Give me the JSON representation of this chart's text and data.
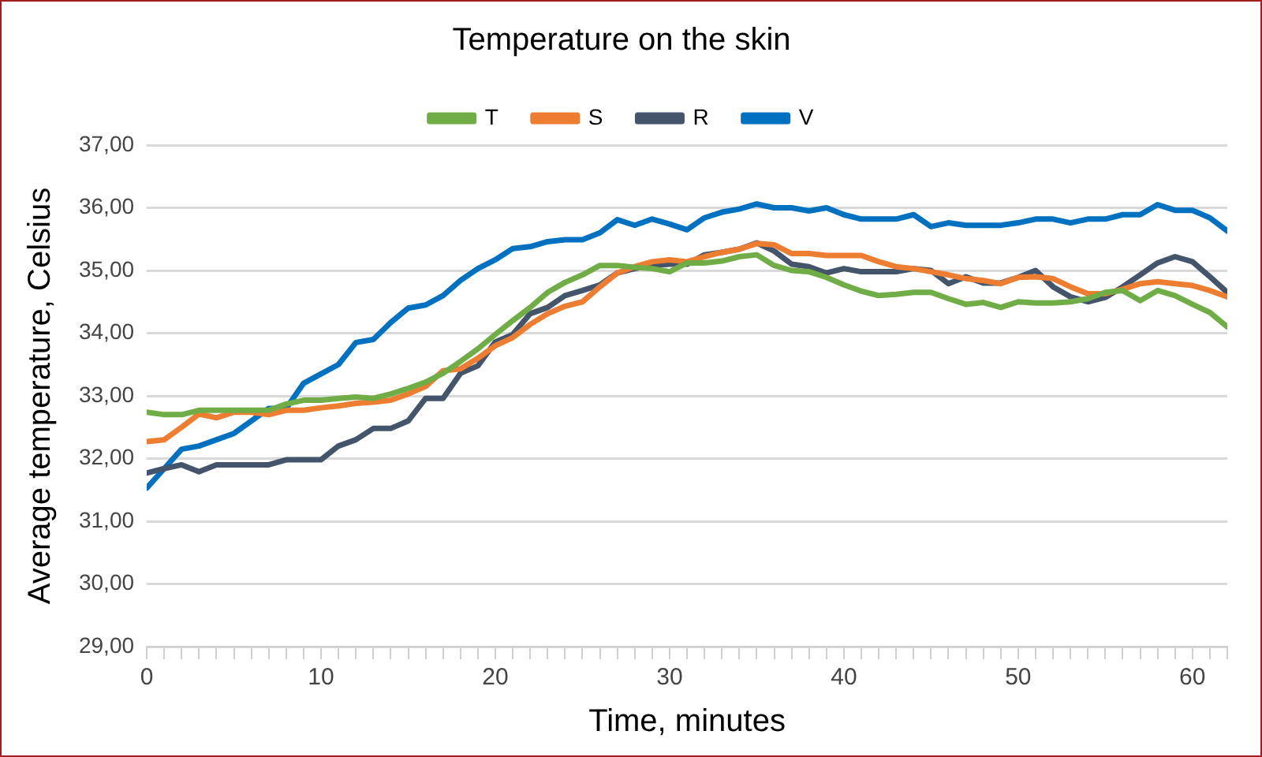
{
  "chart_data": {
    "type": "line",
    "title": "Temperature on the skin",
    "xlabel": "Time, minutes",
    "ylabel": "Average temperature, Celsius",
    "x": [
      0,
      1,
      2,
      3,
      4,
      5,
      6,
      7,
      8,
      9,
      10,
      11,
      12,
      13,
      14,
      15,
      16,
      17,
      18,
      19,
      20,
      21,
      22,
      23,
      24,
      25,
      26,
      27,
      28,
      29,
      30,
      31,
      32,
      33,
      34,
      35,
      36,
      37,
      38,
      39,
      40,
      41,
      42,
      43,
      44,
      45,
      46,
      47,
      48,
      49,
      50,
      51,
      52,
      53,
      54,
      55,
      56,
      57,
      58,
      59,
      60,
      61,
      62
    ],
    "series": [
      {
        "name": "T",
        "color": "#70ad47",
        "values": [
          32.74,
          32.7,
          32.7,
          32.77,
          32.77,
          32.77,
          32.77,
          32.77,
          32.87,
          32.93,
          32.93,
          32.96,
          32.98,
          32.96,
          33.03,
          33.12,
          33.22,
          33.36,
          33.55,
          33.75,
          33.98,
          34.2,
          34.41,
          34.65,
          34.81,
          34.93,
          35.08,
          35.08,
          35.05,
          35.03,
          34.98,
          35.12,
          35.12,
          35.15,
          35.22,
          35.25,
          35.08,
          35.0,
          34.98,
          34.89,
          34.77,
          34.67,
          34.6,
          34.62,
          34.65,
          34.65,
          34.55,
          34.46,
          34.49,
          34.41,
          34.5,
          34.48,
          34.48,
          34.5,
          34.55,
          34.65,
          34.68,
          34.52,
          34.68,
          34.6,
          34.46,
          34.33,
          34.1
        ]
      },
      {
        "name": "S",
        "color": "#ed7d31",
        "values": [
          32.27,
          32.3,
          32.5,
          32.71,
          32.65,
          32.74,
          32.74,
          32.7,
          32.77,
          32.77,
          32.81,
          32.84,
          32.88,
          32.9,
          32.93,
          33.03,
          33.15,
          33.4,
          33.43,
          33.6,
          33.8,
          33.93,
          34.14,
          34.31,
          34.43,
          34.5,
          34.74,
          34.96,
          35.06,
          35.14,
          35.17,
          35.14,
          35.22,
          35.29,
          35.34,
          35.43,
          35.41,
          35.27,
          35.27,
          35.24,
          35.24,
          35.24,
          35.14,
          35.06,
          35.03,
          34.98,
          34.93,
          34.87,
          34.84,
          34.79,
          34.89,
          34.9,
          34.87,
          34.74,
          34.63,
          34.63,
          34.7,
          34.79,
          34.82,
          34.79,
          34.76,
          34.68,
          34.58
        ]
      },
      {
        "name": "R",
        "color": "#44546a",
        "values": [
          31.77,
          31.84,
          31.9,
          31.79,
          31.9,
          31.9,
          31.9,
          31.9,
          31.98,
          31.98,
          31.98,
          32.2,
          32.3,
          32.48,
          32.48,
          32.6,
          32.96,
          32.96,
          33.36,
          33.48,
          33.86,
          33.98,
          34.31,
          34.41,
          34.6,
          34.68,
          34.77,
          34.96,
          35.03,
          35.08,
          35.1,
          35.1,
          35.25,
          35.29,
          35.34,
          35.44,
          35.31,
          35.1,
          35.06,
          34.96,
          35.03,
          34.98,
          34.98,
          34.98,
          35.03,
          35.0,
          34.79,
          34.9,
          34.8,
          34.8,
          34.89,
          35.0,
          34.74,
          34.58,
          34.5,
          34.57,
          34.74,
          34.93,
          35.12,
          35.22,
          35.14,
          34.9,
          34.65
        ]
      },
      {
        "name": "V",
        "color": "#0070c0",
        "values": [
          31.53,
          31.84,
          32.15,
          32.2,
          32.3,
          32.4,
          32.6,
          32.8,
          32.8,
          33.2,
          33.35,
          33.5,
          33.85,
          33.9,
          34.17,
          34.4,
          34.45,
          34.6,
          34.84,
          35.03,
          35.17,
          35.35,
          35.38,
          35.46,
          35.49,
          35.49,
          35.6,
          35.81,
          35.72,
          35.82,
          35.74,
          35.65,
          35.84,
          35.93,
          35.98,
          36.06,
          36.0,
          36.0,
          35.95,
          36.0,
          35.89,
          35.82,
          35.82,
          35.82,
          35.89,
          35.7,
          35.76,
          35.72,
          35.72,
          35.72,
          35.76,
          35.82,
          35.82,
          35.76,
          35.82,
          35.82,
          35.89,
          35.89,
          36.05,
          35.96,
          35.96,
          35.84,
          35.63
        ]
      }
    ],
    "xlim": [
      0,
      62
    ],
    "xticks": [
      0,
      {
        "value": 1,
        "label": null
      },
      {
        "value": 2,
        "label": null
      },
      {
        "value": 3,
        "label": null
      },
      {
        "value": 4,
        "label": null
      },
      {
        "value": 5,
        "label": null
      },
      {
        "value": 6,
        "label": null
      },
      {
        "value": 7,
        "label": null
      },
      {
        "value": 8,
        "label": null
      },
      {
        "value": 9,
        "label": null
      },
      10,
      {
        "value": 11,
        "label": null
      },
      {
        "value": 12,
        "label": null
      },
      {
        "value": 13,
        "label": null
      },
      {
        "value": 14,
        "label": null
      },
      {
        "value": 15,
        "label": null
      },
      {
        "value": 16,
        "label": null
      },
      {
        "value": 17,
        "label": null
      },
      {
        "value": 18,
        "label": null
      },
      {
        "value": 19,
        "label": null
      },
      20,
      {
        "value": 21,
        "label": null
      },
      {
        "value": 22,
        "label": null
      },
      {
        "value": 23,
        "label": null
      },
      {
        "value": 24,
        "label": null
      },
      {
        "value": 25,
        "label": null
      },
      {
        "value": 26,
        "label": null
      },
      {
        "value": 27,
        "label": null
      },
      {
        "value": 28,
        "label": null
      },
      {
        "value": 29,
        "label": null
      },
      30,
      {
        "value": 31,
        "label": null
      },
      {
        "value": 32,
        "label": null
      },
      {
        "value": 33,
        "label": null
      },
      {
        "value": 34,
        "label": null
      },
      {
        "value": 35,
        "label": null
      },
      {
        "value": 36,
        "label": null
      },
      {
        "value": 37,
        "label": null
      },
      {
        "value": 38,
        "label": null
      },
      {
        "value": 39,
        "label": null
      },
      40,
      {
        "value": 41,
        "label": null
      },
      {
        "value": 42,
        "label": null
      },
      {
        "value": 43,
        "label": null
      },
      {
        "value": 44,
        "label": null
      },
      {
        "value": 45,
        "label": null
      },
      {
        "value": 46,
        "label": null
      },
      {
        "value": 47,
        "label": null
      },
      {
        "value": 48,
        "label": null
      },
      {
        "value": 49,
        "label": null
      },
      50,
      {
        "value": 51,
        "label": null
      },
      {
        "value": 52,
        "label": null
      },
      {
        "value": 53,
        "label": null
      },
      {
        "value": 54,
        "label": null
      },
      {
        "value": 55,
        "label": null
      },
      {
        "value": 56,
        "label": null
      },
      {
        "value": 57,
        "label": null
      },
      {
        "value": 58,
        "label": null
      },
      {
        "value": 59,
        "label": null
      },
      60,
      {
        "value": 61,
        "label": null
      },
      {
        "value": 62,
        "label": null
      }
    ],
    "ylim": [
      29,
      37
    ],
    "yticks": [
      {
        "value": 29,
        "label": "29,00"
      },
      {
        "value": 30,
        "label": "30,00"
      },
      {
        "value": 31,
        "label": "31,00"
      },
      {
        "value": 32,
        "label": "32,00"
      },
      {
        "value": 33,
        "label": "33,00"
      },
      {
        "value": 34,
        "label": "34,00"
      },
      {
        "value": 35,
        "label": "35,00"
      },
      {
        "value": 36,
        "label": "36,00"
      },
      {
        "value": 37,
        "label": "37,00"
      }
    ],
    "grid": "y",
    "legend": "top",
    "marker": "none",
    "line_style": "solid"
  }
}
